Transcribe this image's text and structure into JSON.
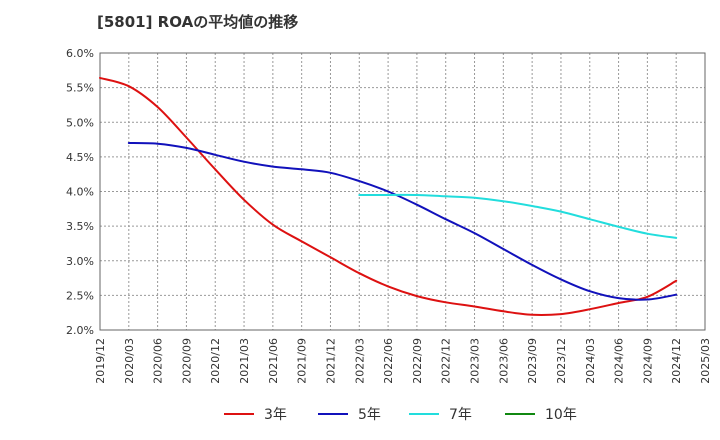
{
  "chart_data": {
    "type": "line",
    "title": "[5801]  ROAの平均値の推移",
    "xlabel": "",
    "ylabel": "",
    "ylim": [
      2.0,
      6.0
    ],
    "yticks": [
      "2.0%",
      "2.5%",
      "3.0%",
      "3.5%",
      "4.0%",
      "4.5%",
      "5.0%",
      "5.5%",
      "6.0%"
    ],
    "x": [
      "2019/12",
      "2020/03",
      "2020/06",
      "2020/09",
      "2020/12",
      "2021/03",
      "2021/06",
      "2021/09",
      "2021/12",
      "2022/03",
      "2022/06",
      "2022/09",
      "2022/12",
      "2023/03",
      "2023/06",
      "2023/09",
      "2023/12",
      "2024/03",
      "2024/06",
      "2024/09",
      "2024/12",
      "2025/03"
    ],
    "grid": true,
    "legend_position": "bottom",
    "series": [
      {
        "name": "3年",
        "color": "#dd1111",
        "values": [
          5.64,
          5.52,
          5.22,
          4.78,
          4.32,
          3.88,
          3.52,
          3.28,
          3.05,
          2.82,
          2.63,
          2.49,
          2.4,
          2.34,
          2.27,
          2.22,
          2.23,
          2.3,
          2.39,
          2.48,
          2.71,
          null
        ]
      },
      {
        "name": "5年",
        "color": "#1111bb",
        "values": [
          null,
          4.7,
          4.69,
          4.63,
          4.53,
          4.43,
          4.36,
          4.32,
          4.27,
          4.15,
          4.0,
          3.81,
          3.6,
          3.4,
          3.17,
          2.94,
          2.73,
          2.56,
          2.46,
          2.44,
          2.51,
          null
        ]
      },
      {
        "name": "7年",
        "color": "#22dddd",
        "values": [
          null,
          null,
          null,
          null,
          null,
          null,
          null,
          null,
          null,
          3.95,
          3.95,
          3.95,
          3.93,
          3.91,
          3.86,
          3.79,
          3.71,
          3.6,
          3.49,
          3.39,
          3.33,
          null
        ]
      },
      {
        "name": "10年",
        "color": "#118811",
        "values": [
          null,
          null,
          null,
          null,
          null,
          null,
          null,
          null,
          null,
          null,
          null,
          null,
          null,
          null,
          null,
          null,
          null,
          null,
          null,
          null,
          null,
          null
        ]
      }
    ]
  }
}
